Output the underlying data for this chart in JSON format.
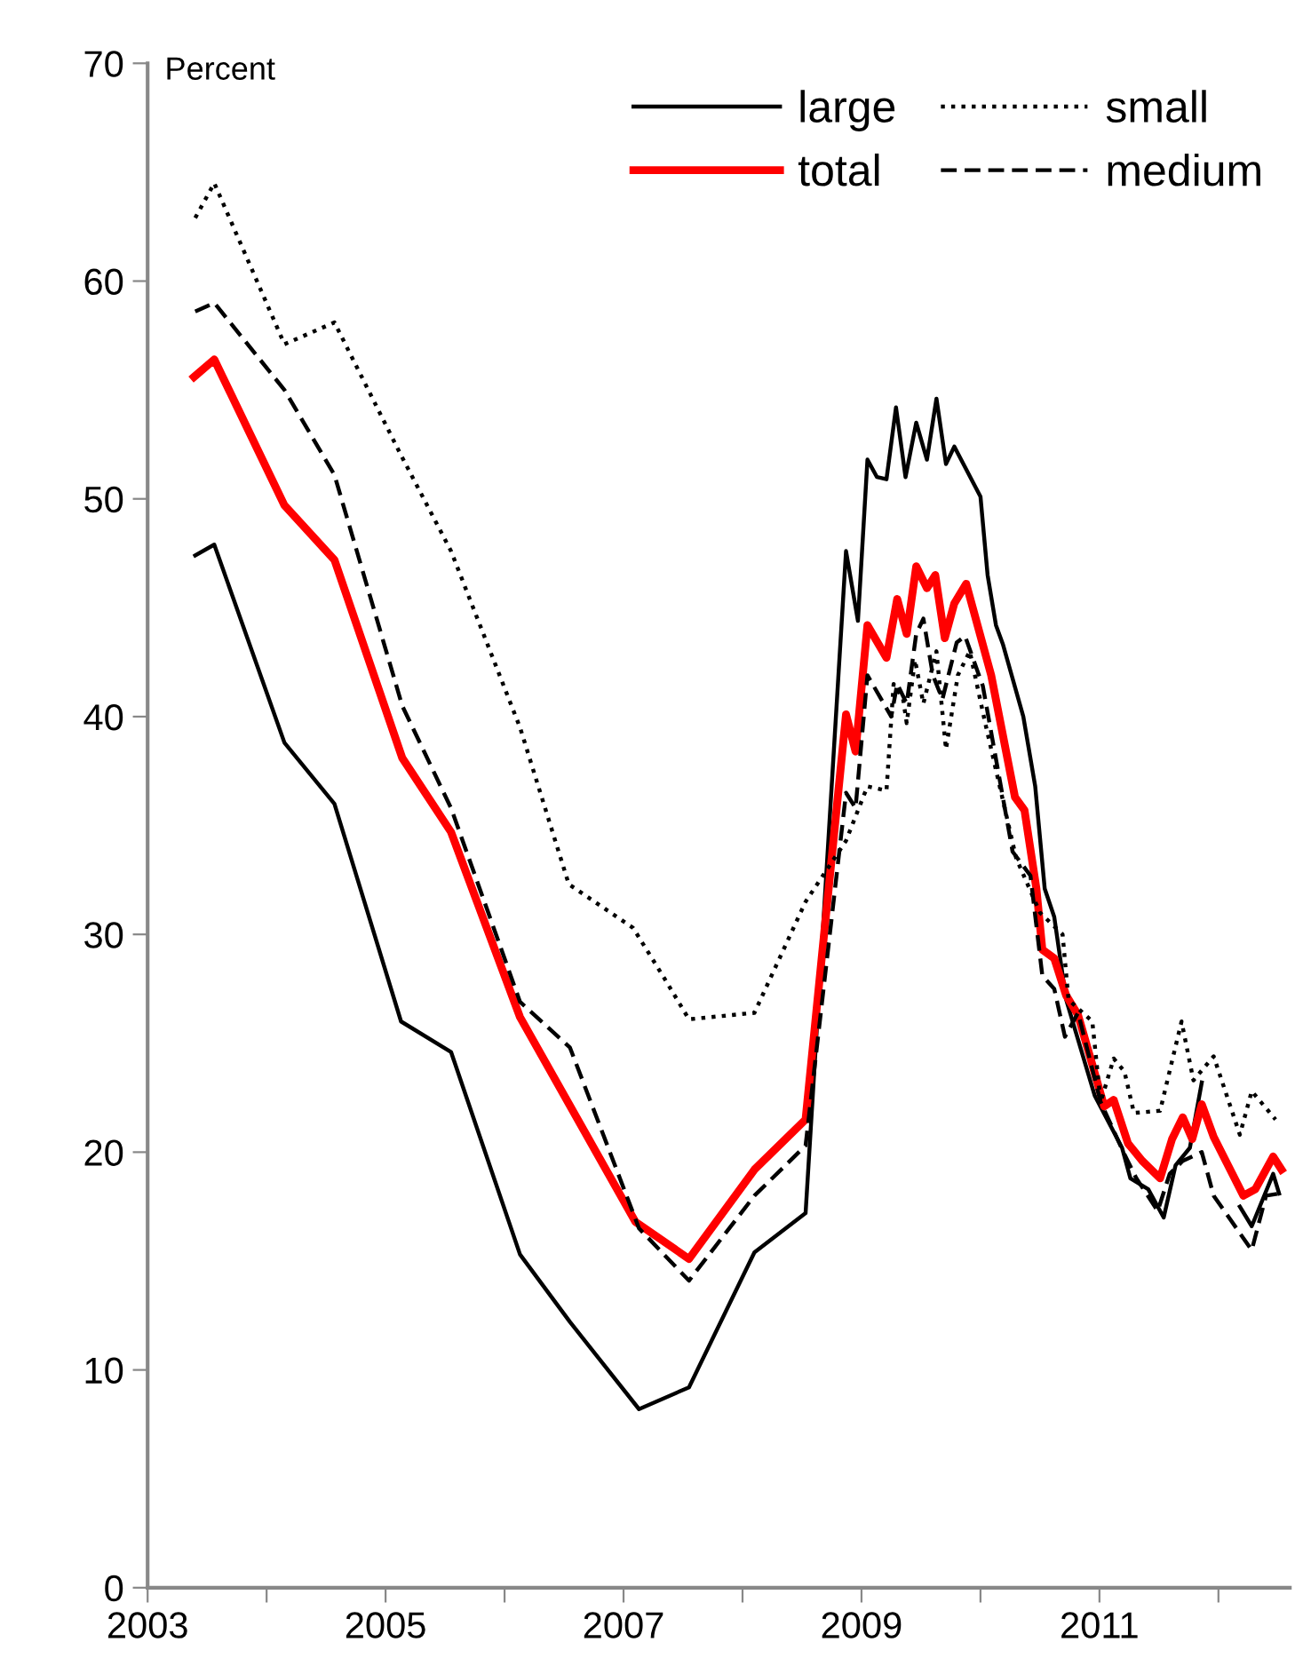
{
  "chart_data": {
    "type": "line",
    "ylabel": "Percent",
    "xlim": [
      2003,
      2012.6
    ],
    "xticks": [
      2003,
      {
        "value": 2004,
        "label": null
      },
      2005,
      {
        "value": 2006,
        "label": null
      },
      2007,
      {
        "value": 2008,
        "label": null
      },
      2009,
      {
        "value": 2010,
        "label": null
      },
      2011,
      {
        "value": 2012,
        "label": null
      }
    ],
    "ylim": [
      0,
      70
    ],
    "yticks": [
      0,
      10,
      20,
      30,
      40,
      50,
      60,
      70
    ],
    "grid": false,
    "legend": "top right",
    "marker": "none",
    "series": [
      {
        "name": "large",
        "color": "#000000",
        "line_style": "solid",
        "x": [
          2003.4,
          2003.56,
          2004.15,
          2004.57,
          2005.13,
          2005.55,
          2006.13,
          2006.55,
          2007.13,
          2007.55,
          2008.1,
          2008.53,
          2008.87,
          2008.97,
          2009.05,
          2009.13,
          2009.21,
          2009.29,
          2009.37,
          2009.46,
          2009.55,
          2009.63,
          2009.71,
          2009.78,
          2010.0,
          2010.06,
          2010.13,
          2010.19,
          2010.36,
          2010.46,
          2010.54,
          2010.62,
          2010.72,
          2010.96,
          2011.19,
          2011.26,
          2011.41,
          2011.54,
          2011.64,
          2011.76,
          2011.86,
          2011.96,
          2012.18,
          2012.28,
          2012.46,
          2012.51
        ],
        "values": [
          47.4,
          47.9,
          38.8,
          36.0,
          26.0,
          24.6,
          15.3,
          12.2,
          8.2,
          9.2,
          15.4,
          17.2,
          47.6,
          44.4,
          51.8,
          51.0,
          50.9,
          54.2,
          51.0,
          53.5,
          51.8,
          54.6,
          51.6,
          52.4,
          50.1,
          46.5,
          44.2,
          43.3,
          40.0,
          36.8,
          32.1,
          30.8,
          27.0,
          22.6,
          20.2,
          18.8,
          18.3,
          17.0,
          19.4,
          20.2,
          23.2,
          null,
          17.5,
          16.6,
          19.0,
          18.1
        ]
      },
      {
        "name": "total",
        "color": "#ff0000",
        "line_style": "solid",
        "x": [
          2003.39,
          2003.56,
          2004.15,
          2004.57,
          2005.14,
          2005.55,
          2006.13,
          2007.1,
          2007.55,
          2008.1,
          2008.53,
          2008.87,
          2008.95,
          2009.05,
          2009.21,
          2009.3,
          2009.38,
          2009.46,
          2009.55,
          2009.62,
          2009.7,
          2009.78,
          2009.88,
          2010.09,
          2010.29,
          2010.37,
          2010.47,
          2010.52,
          2010.62,
          2010.72,
          2010.82,
          2010.92,
          2011.04,
          2011.12,
          2011.24,
          2011.36,
          2011.51,
          2011.61,
          2011.7,
          2011.78,
          2011.86,
          2011.96,
          2012.21,
          2012.31,
          2012.46,
          2012.53
        ],
        "values": [
          55.6,
          56.4,
          49.7,
          47.2,
          38.1,
          34.7,
          26.2,
          16.8,
          15.1,
          19.2,
          21.5,
          40.1,
          38.4,
          44.2,
          42.7,
          45.4,
          43.8,
          46.9,
          45.9,
          46.5,
          43.6,
          45.2,
          46.1,
          41.9,
          36.3,
          35.7,
          32.1,
          29.3,
          28.9,
          27.2,
          26.3,
          24.4,
          22.1,
          22.4,
          20.4,
          19.6,
          18.8,
          20.6,
          21.6,
          20.6,
          22.2,
          20.7,
          18.0,
          18.3,
          19.8,
          19.2
        ]
      },
      {
        "name": "small",
        "color": "#000000",
        "line_style": "dotted",
        "x": [
          2003.4,
          2003.56,
          2004.15,
          2004.57,
          2005.13,
          2005.55,
          2006.13,
          2006.54,
          2007.08,
          2007.33,
          2007.55,
          2008.1,
          2008.53,
          2008.87,
          2009.05,
          2009.21,
          2009.27,
          2009.35,
          2009.38,
          2009.45,
          2009.52,
          2009.63,
          2009.71,
          2009.81,
          2009.91,
          2010.04,
          2010.3,
          2010.5,
          2010.69,
          2010.74,
          2010.94,
          2011.01,
          2011.12,
          2011.21,
          2011.29,
          2011.51,
          2011.69,
          2011.79,
          2011.96,
          2012.18,
          2012.28,
          2012.48
        ],
        "values": [
          62.9,
          64.5,
          57.1,
          58.1,
          52.0,
          47.6,
          39.5,
          32.3,
          30.3,
          28.1,
          26.1,
          26.4,
          31.5,
          34.3,
          36.8,
          36.6,
          41.5,
          40.8,
          39.7,
          42.6,
          40.6,
          43.0,
          38.5,
          41.9,
          43.0,
          39.7,
          33.5,
          31.0,
          30.0,
          27.0,
          26.0,
          22.3,
          24.3,
          23.7,
          21.8,
          21.9,
          26.0,
          23.3,
          24.4,
          20.8,
          22.8,
          21.5
        ]
      },
      {
        "name": "medium",
        "color": "#000000",
        "line_style": "dashed",
        "x": [
          2003.4,
          2003.56,
          2004.15,
          2004.57,
          2005.14,
          2005.55,
          2006.13,
          2006.55,
          2007.13,
          2007.55,
          2008.1,
          2008.53,
          2008.87,
          2008.95,
          2009.05,
          2009.25,
          2009.3,
          2009.38,
          2009.46,
          2009.52,
          2009.6,
          2009.68,
          2009.8,
          2009.87,
          2010.02,
          2010.27,
          2010.42,
          2010.52,
          2010.62,
          2010.71,
          2010.82,
          2011.01,
          2011.21,
          2011.31,
          2011.49,
          2011.59,
          2011.7,
          2011.86,
          2011.96,
          2012.28,
          2012.4,
          2012.51
        ],
        "values": [
          58.6,
          59.0,
          55.0,
          51.1,
          40.5,
          35.8,
          26.9,
          24.8,
          16.5,
          14.1,
          18.0,
          20.3,
          36.5,
          35.8,
          41.9,
          40.0,
          41.5,
          40.6,
          43.8,
          44.5,
          41.9,
          40.8,
          43.4,
          43.7,
          41.4,
          33.8,
          32.7,
          28.1,
          27.5,
          25.3,
          26.4,
          22.3,
          19.9,
          18.8,
          17.3,
          19.0,
          19.6,
          20.0,
          18.0,
          15.5,
          18.0,
          18.1
        ]
      }
    ]
  }
}
